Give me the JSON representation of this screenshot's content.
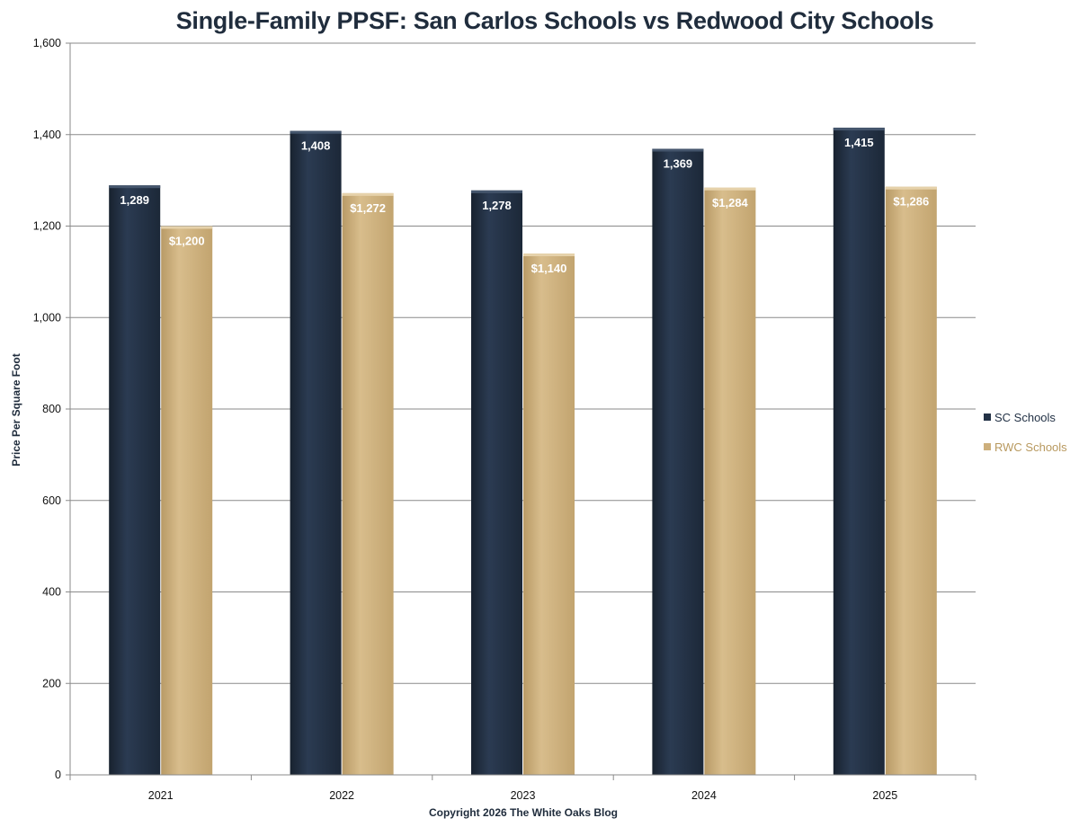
{
  "chart_data": {
    "type": "bar",
    "title": "Single-Family PPSF: San Carlos Schools vs Redwood City Schools",
    "ylabel": "Price Per Square Foot",
    "xlabel": "Copyright 2026 The White Oaks Blog",
    "categories": [
      "2021",
      "2022",
      "2023",
      "2024",
      "2025"
    ],
    "ylim": [
      0,
      1600
    ],
    "yticks": [
      0,
      200,
      400,
      600,
      800,
      1000,
      1200,
      1400,
      1600
    ],
    "ytick_labels": [
      "0",
      "200",
      "400",
      "600",
      "800",
      "1,000",
      "1,200",
      "1,400",
      "1,600"
    ],
    "grid": true,
    "legend_position": "right",
    "series": [
      {
        "name": "SC Schools",
        "color": "#233246",
        "values": [
          1289,
          1408,
          1278,
          1369,
          1415
        ],
        "data_labels": [
          "1,289",
          "1,408",
          "1,278",
          "1,369",
          "1,415"
        ]
      },
      {
        "name": "RWC Schools",
        "color": "#cdaf7c",
        "values": [
          1200,
          1272,
          1140,
          1284,
          1286
        ],
        "data_labels": [
          "$1,200",
          "$1,272",
          "$1,140",
          "$1,284",
          "$1,286"
        ]
      }
    ]
  }
}
